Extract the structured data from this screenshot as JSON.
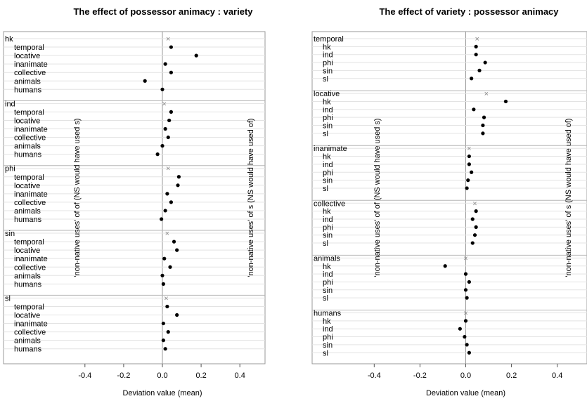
{
  "chart_data": [
    {
      "type": "dot",
      "title": "The effect of possessor animacy : variety",
      "xlabel": "Deviation value (mean)",
      "xticks": [
        "-0.4",
        "-0.2",
        "0.0",
        "0.2",
        "0.4"
      ],
      "xlim": [
        -0.53,
        0.53
      ],
      "left_side_label": "'non-native uses' of of (NS would have used s)",
      "right_side_label": "'non-native uses' of s (NS would have used of)",
      "groups": [
        {
          "name": "hk",
          "mean": 0.03,
          "items": [
            {
              "label": "temporal",
              "value": 0.045
            },
            {
              "label": "locative",
              "value": 0.175
            },
            {
              "label": "inanimate",
              "value": 0.015
            },
            {
              "label": "collective",
              "value": 0.045
            },
            {
              "label": "animals",
              "value": -0.09
            },
            {
              "label": "humans",
              "value": 0.0
            }
          ]
        },
        {
          "name": "ind",
          "mean": 0.01,
          "items": [
            {
              "label": "temporal",
              "value": 0.045
            },
            {
              "label": "locative",
              "value": 0.035
            },
            {
              "label": "inanimate",
              "value": 0.015
            },
            {
              "label": "collective",
              "value": 0.03
            },
            {
              "label": "animals",
              "value": 0.0
            },
            {
              "label": "humans",
              "value": -0.025
            }
          ]
        },
        {
          "name": "phi",
          "mean": 0.03,
          "items": [
            {
              "label": "temporal",
              "value": 0.085
            },
            {
              "label": "locative",
              "value": 0.08
            },
            {
              "label": "inanimate",
              "value": 0.025
            },
            {
              "label": "collective",
              "value": 0.045
            },
            {
              "label": "animals",
              "value": 0.015
            },
            {
              "label": "humans",
              "value": -0.005
            }
          ]
        },
        {
          "name": "sin",
          "mean": 0.025,
          "items": [
            {
              "label": "temporal",
              "value": 0.06
            },
            {
              "label": "locative",
              "value": 0.075
            },
            {
              "label": "inanimate",
              "value": 0.01
            },
            {
              "label": "collective",
              "value": 0.04
            },
            {
              "label": "animals",
              "value": 0.0
            },
            {
              "label": "humans",
              "value": 0.005
            }
          ]
        },
        {
          "name": "sl",
          "mean": 0.02,
          "items": [
            {
              "label": "temporal",
              "value": 0.025
            },
            {
              "label": "locative",
              "value": 0.075
            },
            {
              "label": "inanimate",
              "value": 0.005
            },
            {
              "label": "collective",
              "value": 0.03
            },
            {
              "label": "animals",
              "value": 0.005
            },
            {
              "label": "humans",
              "value": 0.015
            }
          ]
        }
      ]
    },
    {
      "type": "dot",
      "title": "The effect of variety : possessor animacy",
      "xlabel": "Deviation value (mean)",
      "xticks": [
        "-0.4",
        "-0.2",
        "0.0",
        "0.2",
        "0.4"
      ],
      "xlim": [
        -0.53,
        0.53
      ],
      "left_side_label": "'non-native uses' of of (NS would have used s)",
      "right_side_label": "'non-native uses' of s (NS would have used of)",
      "groups": [
        {
          "name": "temporal",
          "mean": 0.05,
          "items": [
            {
              "label": "hk",
              "value": 0.045
            },
            {
              "label": "ind",
              "value": 0.045
            },
            {
              "label": "phi",
              "value": 0.085
            },
            {
              "label": "sin",
              "value": 0.06
            },
            {
              "label": "sl",
              "value": 0.025
            }
          ]
        },
        {
          "name": "locative",
          "mean": 0.09,
          "items": [
            {
              "label": "hk",
              "value": 0.175
            },
            {
              "label": "ind",
              "value": 0.035
            },
            {
              "label": "phi",
              "value": 0.08
            },
            {
              "label": "sin",
              "value": 0.075
            },
            {
              "label": "sl",
              "value": 0.075
            }
          ]
        },
        {
          "name": "inanimate",
          "mean": 0.015,
          "items": [
            {
              "label": "hk",
              "value": 0.015
            },
            {
              "label": "ind",
              "value": 0.015
            },
            {
              "label": "phi",
              "value": 0.025
            },
            {
              "label": "sin",
              "value": 0.01
            },
            {
              "label": "sl",
              "value": 0.005
            }
          ]
        },
        {
          "name": "collective",
          "mean": 0.04,
          "items": [
            {
              "label": "hk",
              "value": 0.045
            },
            {
              "label": "ind",
              "value": 0.03
            },
            {
              "label": "phi",
              "value": 0.045
            },
            {
              "label": "sin",
              "value": 0.04
            },
            {
              "label": "sl",
              "value": 0.03
            }
          ]
        },
        {
          "name": "animals",
          "mean": 0.0,
          "items": [
            {
              "label": "hk",
              "value": -0.09
            },
            {
              "label": "ind",
              "value": 0.0
            },
            {
              "label": "phi",
              "value": 0.015
            },
            {
              "label": "sin",
              "value": 0.0
            },
            {
              "label": "sl",
              "value": 0.005
            }
          ]
        },
        {
          "name": "humans",
          "mean": 0.0,
          "items": [
            {
              "label": "hk",
              "value": 0.0
            },
            {
              "label": "ind",
              "value": -0.025
            },
            {
              "label": "phi",
              "value": -0.005
            },
            {
              "label": "sin",
              "value": 0.005
            },
            {
              "label": "sl",
              "value": 0.015
            }
          ]
        }
      ]
    }
  ]
}
